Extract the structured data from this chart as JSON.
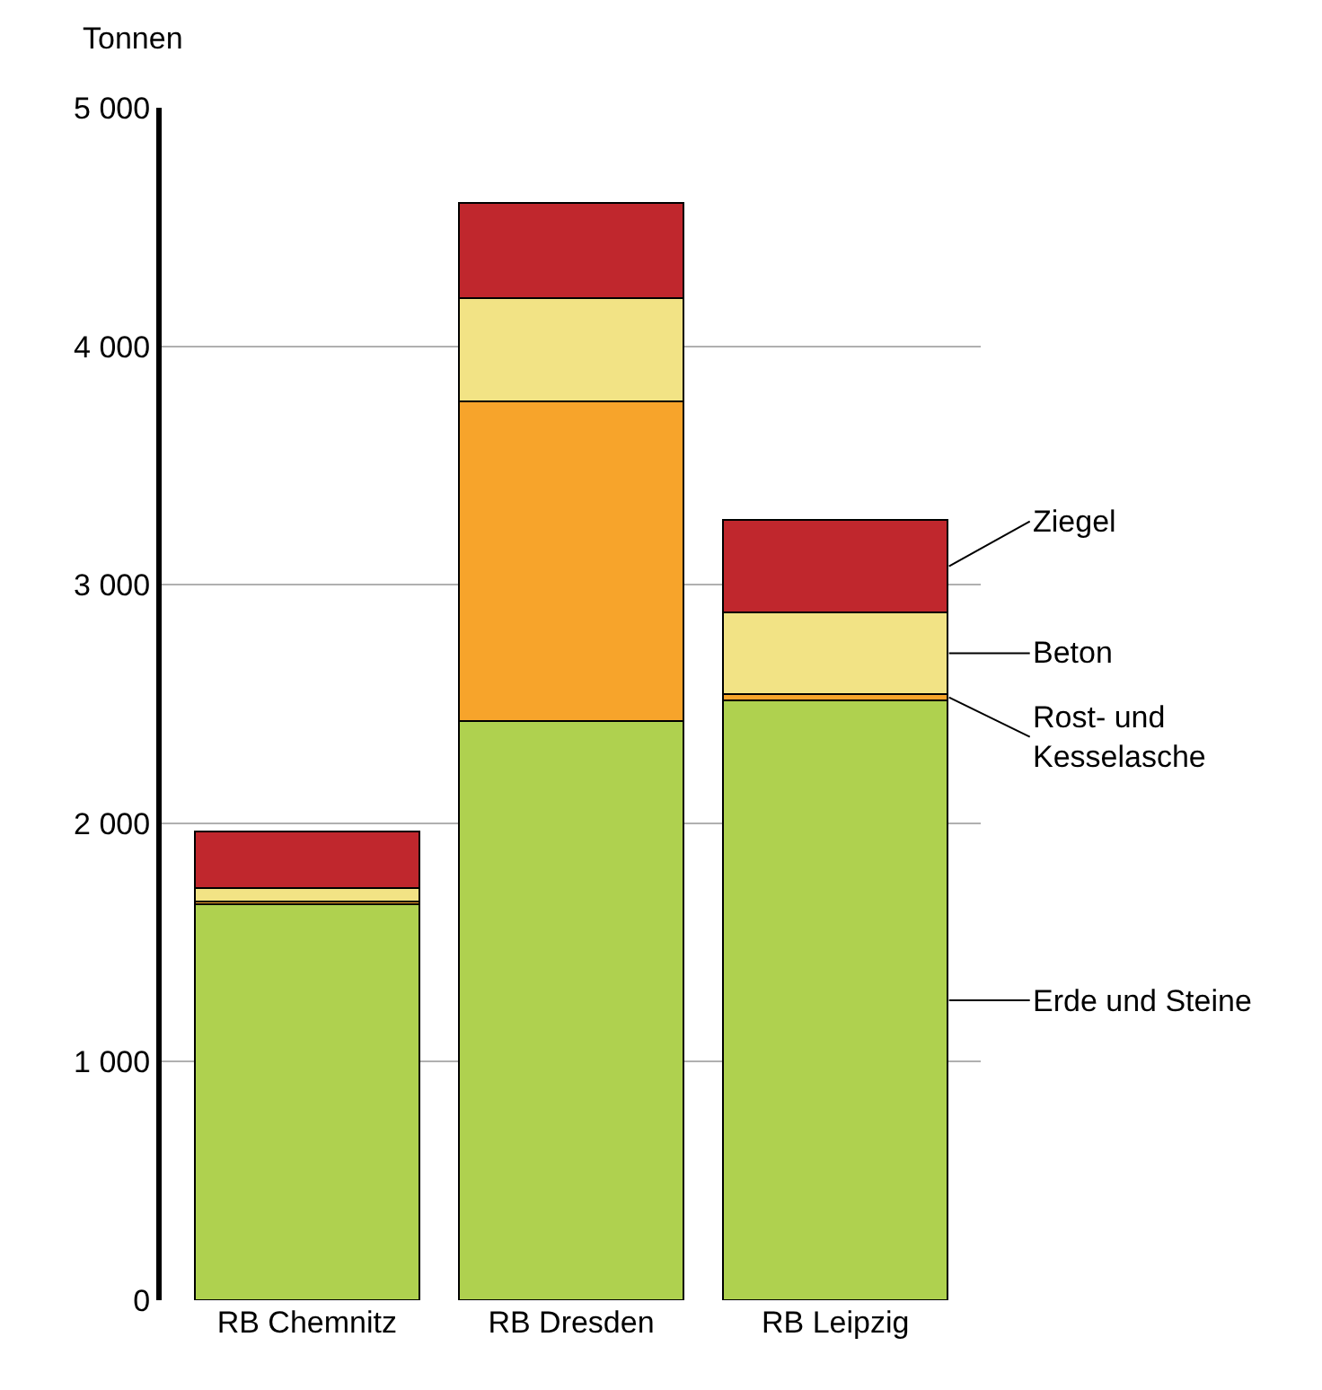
{
  "chart_data": {
    "type": "bar",
    "stacked": true,
    "ylabel": "Tonnen",
    "categories": [
      "RB Chemnitz",
      "RB Dresden",
      "RB Leipzig"
    ],
    "series": [
      {
        "name": "Erde und Steine",
        "color": "#afd14f",
        "values": [
          1660,
          2430,
          2515
        ]
      },
      {
        "name": "Rost- und Kesselasche",
        "color": "#f7a42b",
        "values": [
          10,
          1340,
          25
        ]
      },
      {
        "name": "Beton",
        "color": "#f2e385",
        "values": [
          60,
          430,
          345
        ]
      },
      {
        "name": "Ziegel",
        "color": "#c0272d",
        "values": [
          235,
          400,
          385
        ]
      }
    ],
    "ylim": [
      0,
      5000
    ],
    "yticks": [
      0,
      {
        "value": 1000,
        "label": "1 000"
      },
      {
        "value": 2000,
        "label": "2 000"
      },
      {
        "value": 3000,
        "label": "3 000"
      },
      {
        "value": 4000,
        "label": "4 000"
      },
      {
        "value": 5000,
        "label": "5 000"
      }
    ],
    "grid": "y",
    "legend": "right"
  }
}
